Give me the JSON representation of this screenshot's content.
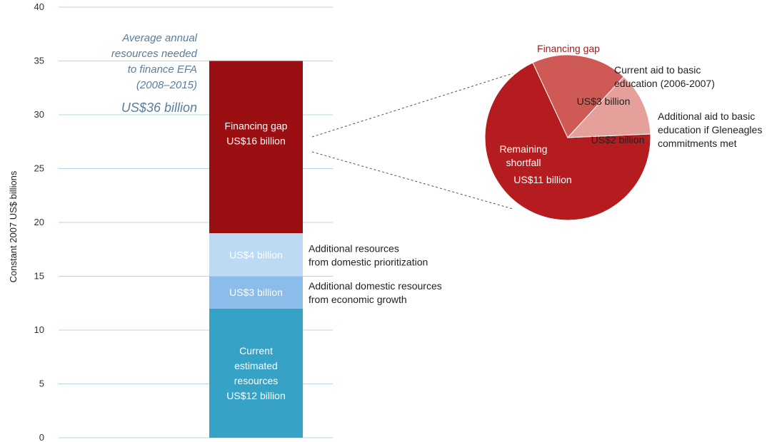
{
  "chart_data": {
    "type": "bar",
    "ylabel": "Constant 2007 US$ billions",
    "ylim": [
      0,
      40
    ],
    "yticks": [
      "0",
      "5",
      "10",
      "15",
      "20",
      "25",
      "30",
      "35",
      "40"
    ],
    "grid": true,
    "annotation": {
      "lines": [
        "Average annual",
        "resources needed",
        "to finance EFA",
        "(2008–2015)"
      ],
      "total": "US$36 billion"
    },
    "stacked_bar": [
      {
        "name": "Current estimated resources",
        "value": 12,
        "color": "#36a3c6",
        "label_lines": [
          "Current",
          "estimated",
          "resources",
          "US$12 billion"
        ]
      },
      {
        "name": "Additional domestic resources from economic growth",
        "value": 3,
        "color": "#8cbdea",
        "label_lines": [
          "US$3 billion"
        ],
        "side_lines": [
          "Additional domestic resources",
          "from economic growth"
        ]
      },
      {
        "name": "Additional resources from domestic prioritization",
        "value": 4,
        "color": "#bcdaf4",
        "label_lines": [
          "US$4 billion"
        ],
        "side_lines": [
          "Additional resources",
          "from domestic prioritization"
        ]
      },
      {
        "name": "Financing gap",
        "value": 16,
        "color": "#9b0f12",
        "label_lines": [
          "Financing gap",
          "US$16 billion"
        ]
      }
    ],
    "pie": {
      "title": "Financing gap",
      "slices": [
        {
          "label_lines": [
            "Remaining",
            "shortfall"
          ],
          "value_label": "US$11 billion",
          "value": 11,
          "color": "#b51c1f"
        },
        {
          "label_lines": [
            "Current aid to basic",
            "education (2006-2007)"
          ],
          "value_label": "US$3 billion",
          "value": 3,
          "color": "#cf5a55"
        },
        {
          "label_lines": [
            "Additional aid to basic",
            "education if Gleneagles",
            "commitments met"
          ],
          "value_label": "US$2 billion",
          "value": 2,
          "color": "#e6a09c"
        }
      ]
    }
  }
}
